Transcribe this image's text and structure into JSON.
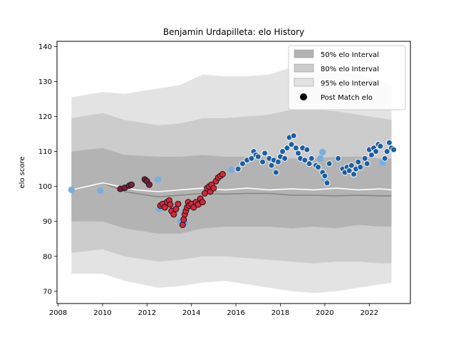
{
  "chart_data": {
    "type": "scatter",
    "title": "Benjamin Urdapilleta: elo History",
    "xlabel": "",
    "ylabel": "elo score",
    "xlim": [
      2007.95,
      2023.85
    ],
    "ylim": [
      66.5,
      141.5
    ],
    "x_ticks": [
      2008,
      2010,
      2012,
      2014,
      2016,
      2018,
      2020,
      2022
    ],
    "y_ticks": [
      70,
      80,
      90,
      100,
      110,
      120,
      130,
      140
    ],
    "grid": false,
    "legend_position": "top-right",
    "legend": [
      {
        "label": "50% elo Interval",
        "kind": "band",
        "color": "#b3b3b3"
      },
      {
        "label": "80% elo Interval",
        "kind": "band",
        "color": "#cccccc"
      },
      {
        "label": "95% elo Interval",
        "kind": "band",
        "color": "#e3e3e3"
      },
      {
        "label": "Post Match elo",
        "kind": "marker",
        "color": "#000000"
      }
    ],
    "colors": {
      "band50": "#b3b3b3",
      "band80": "#cccccc",
      "band95": "#e3e3e3",
      "median_line": "#888888",
      "player_line": "#ffffff",
      "light_blue": "#7aaee0",
      "dark_red": "#7a1f3d",
      "red": "#d4283c",
      "blue": "#1f5fa0"
    },
    "bands": {
      "x": [
        2008.6,
        2010.0,
        2011.0,
        2012.5,
        2013.5,
        2014.5,
        2015.5,
        2016.5,
        2017.5,
        2018.5,
        2019.5,
        2020.5,
        2021.5,
        2022.5,
        2023.0
      ],
      "mid": [
        99.0,
        101.0,
        98.5,
        97.0,
        97.5,
        98.0,
        97.8,
        98.0,
        98.0,
        97.5,
        97.5,
        97.3,
        97.5,
        97.3,
        97.3
      ],
      "p50_lo": [
        90.0,
        90.0,
        88.0,
        86.5,
        86.5,
        88.0,
        88.5,
        88.5,
        88.5,
        88.0,
        88.5,
        88.0,
        89.0,
        88.5,
        88.5
      ],
      "p50_hi": [
        110.0,
        111.0,
        109.0,
        108.5,
        108.5,
        109.0,
        108.5,
        108.5,
        108.5,
        108.0,
        108.0,
        108.5,
        108.5,
        108.0,
        108.0
      ],
      "p80_lo": [
        81.0,
        82.0,
        80.0,
        78.5,
        79.0,
        80.0,
        80.0,
        79.5,
        79.0,
        78.5,
        78.0,
        78.5,
        78.5,
        78.0,
        78.0
      ],
      "p80_hi": [
        119.5,
        121.0,
        119.0,
        117.5,
        118.0,
        119.5,
        119.5,
        120.0,
        120.5,
        122.0,
        122.0,
        121.5,
        120.5,
        119.5,
        119.0
      ],
      "p95_lo": [
        75.0,
        75.0,
        73.0,
        71.0,
        71.5,
        72.5,
        73.0,
        72.0,
        71.0,
        70.0,
        69.5,
        70.0,
        71.0,
        72.0,
        72.5
      ],
      "p95_hi": [
        125.5,
        127.0,
        126.5,
        128.0,
        129.0,
        132.0,
        131.5,
        131.5,
        132.0,
        134.0,
        133.5,
        133.0,
        132.0,
        130.0,
        129.0
      ]
    },
    "player_line": {
      "x": [
        2008.6,
        2010.0,
        2011.5,
        2012.5,
        2013.5,
        2014.5,
        2015.5,
        2016.5,
        2017.5,
        2018.5,
        2019.5,
        2020.5,
        2021.5,
        2022.5,
        2023.0
      ],
      "y": [
        99.0,
        101.0,
        99.0,
        98.5,
        99.0,
        99.5,
        99.0,
        99.5,
        99.0,
        99.3,
        99.0,
        99.5,
        99.0,
        99.3,
        99.0
      ]
    },
    "series": [
      {
        "group": "light_blue",
        "x": [
          2008.6,
          2009.9,
          2012.5,
          2012.55,
          2013.5,
          2013.7,
          2015.8,
          2019.8,
          2019.9,
          2020.0,
          2022.6
        ],
        "y": [
          99.0,
          98.8,
          102.0,
          93.5,
          90.0,
          89.5,
          104.8,
          108.0,
          109.8,
          102.0,
          106.8
        ]
      },
      {
        "group": "dark_red",
        "x": [
          2010.8,
          2011.0,
          2011.2,
          2011.3,
          2011.9,
          2012.0,
          2012.1
        ],
        "y": [
          99.3,
          99.6,
          100.2,
          100.5,
          102.0,
          101.5,
          100.5
        ]
      },
      {
        "group": "red",
        "x": [
          2012.6,
          2012.7,
          2012.8,
          2012.9,
          2013.0,
          2013.05,
          2013.1,
          2013.2,
          2013.3,
          2013.4,
          2013.6,
          2013.65,
          2013.7,
          2013.75,
          2013.8,
          2013.85,
          2013.9,
          2014.0,
          2014.1,
          2014.2,
          2014.3,
          2014.4,
          2014.5,
          2014.6,
          2014.7,
          2014.8,
          2014.85,
          2014.9,
          2015.0,
          2015.1,
          2015.2,
          2015.3,
          2015.4
        ],
        "y": [
          94.5,
          95.0,
          94.0,
          95.5,
          96.0,
          94.8,
          93.0,
          92.0,
          93.5,
          95.0,
          89.0,
          90.5,
          92.0,
          93.0,
          94.0,
          95.5,
          94.5,
          95.0,
          94.0,
          95.5,
          94.8,
          96.5,
          95.5,
          98.0,
          99.5,
          100.0,
          98.5,
          100.5,
          99.5,
          101.5,
          102.5,
          103.0,
          103.5
        ]
      },
      {
        "group": "blue",
        "x": [
          2016.1,
          2016.3,
          2016.5,
          2016.7,
          2016.8,
          2016.9,
          2017.0,
          2017.2,
          2017.3,
          2017.5,
          2017.6,
          2017.7,
          2017.8,
          2017.9,
          2018.0,
          2018.1,
          2018.2,
          2018.3,
          2018.4,
          2018.5,
          2018.6,
          2018.7,
          2018.8,
          2018.9,
          2019.0,
          2019.1,
          2019.2,
          2019.3,
          2019.4,
          2019.6,
          2019.7,
          2019.9,
          2020.0,
          2020.1,
          2020.2,
          2020.6,
          2020.8,
          2020.9,
          2021.0,
          2021.1,
          2021.2,
          2021.3,
          2021.4,
          2021.5,
          2021.6,
          2021.8,
          2021.9,
          2022.0,
          2022.1,
          2022.2,
          2022.3,
          2022.4,
          2022.5,
          2022.7,
          2022.8,
          2022.9,
          2023.0,
          2023.1
        ],
        "y": [
          105.0,
          106.5,
          107.5,
          108.0,
          110.0,
          109.0,
          108.5,
          107.0,
          109.5,
          108.0,
          106.0,
          107.5,
          104.0,
          107.0,
          108.5,
          110.0,
          108.0,
          111.0,
          114.0,
          112.0,
          114.5,
          111.0,
          109.5,
          108.0,
          111.0,
          107.5,
          110.5,
          106.5,
          108.0,
          106.0,
          105.5,
          104.0,
          103.0,
          101.0,
          106.5,
          108.0,
          105.0,
          104.0,
          105.5,
          104.5,
          106.0,
          103.5,
          105.0,
          107.0,
          105.5,
          108.0,
          106.5,
          110.5,
          109.0,
          111.0,
          110.0,
          112.0,
          111.5,
          108.0,
          110.0,
          112.5,
          111.0,
          110.5
        ]
      }
    ]
  }
}
